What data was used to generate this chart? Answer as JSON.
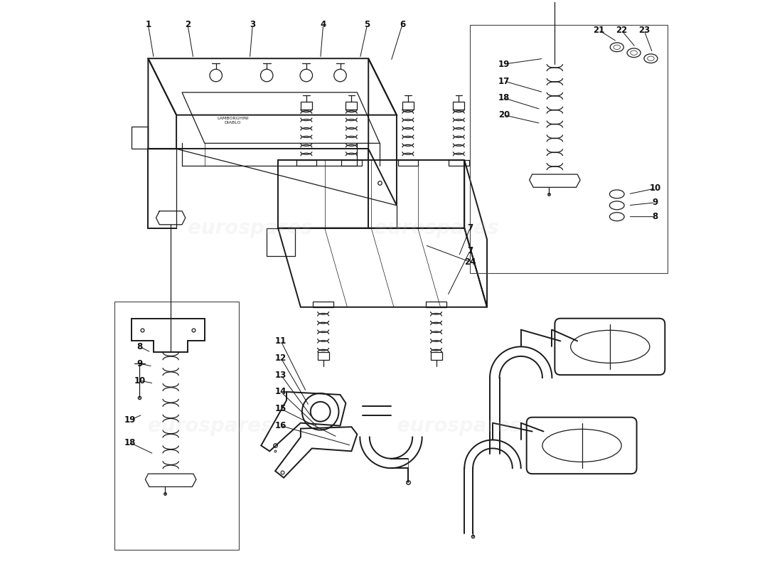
{
  "bg_color": "#ffffff",
  "line_color": "#1a1a1a",
  "label_color": "#111111",
  "watermark_color": "#c8c8c8",
  "watermark_text": "eurospares",
  "lw_main": 1.4,
  "lw_thin": 0.9
}
